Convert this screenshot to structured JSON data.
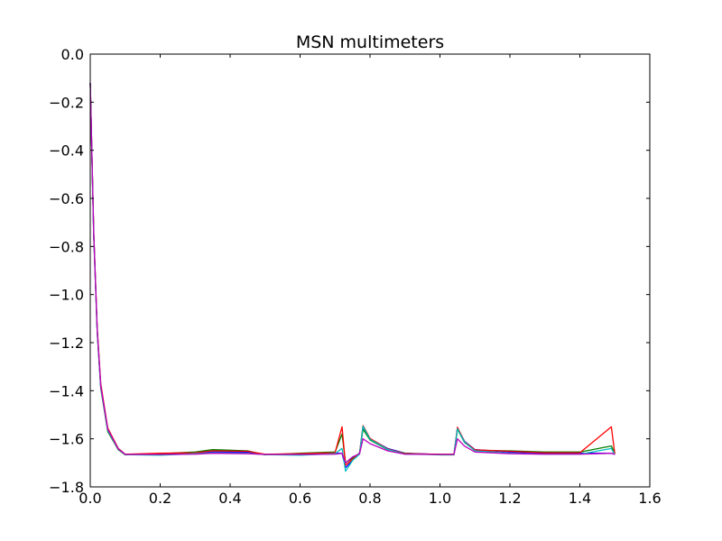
{
  "chart_data": {
    "type": "line",
    "title": "MSN multimeters",
    "xlabel": "",
    "ylabel": "",
    "xlim": [
      0.0,
      1.6
    ],
    "ylim": [
      -1.8,
      0.0
    ],
    "xticks": [
      0.0,
      0.2,
      0.4,
      0.6,
      0.8,
      1.0,
      1.2,
      1.4,
      1.6
    ],
    "xtick_labels": [
      "0.0",
      "0.2",
      "0.4",
      "0.6",
      "0.8",
      "1.0",
      "1.2",
      "1.4",
      "1.6"
    ],
    "yticks": [
      0.0,
      -0.2,
      -0.4,
      -0.6,
      -0.8,
      -1.0,
      -1.2,
      -1.4,
      -1.6,
      -1.8
    ],
    "ytick_labels": [
      "0.0",
      "−0.2",
      "−0.4",
      "−0.6",
      "−0.8",
      "−1.0",
      "−1.2",
      "−1.4",
      "−1.6",
      "−1.8"
    ],
    "grid": false,
    "legend": "none",
    "series": [
      {
        "color": "#0000ff",
        "x": [
          0.0,
          0.01,
          0.02,
          0.03,
          0.05,
          0.08,
          0.1,
          0.2,
          0.3,
          0.35,
          0.45,
          0.5,
          0.6,
          0.7,
          0.72,
          0.73,
          0.75,
          0.77,
          0.78,
          0.8,
          0.85,
          0.9,
          1.0,
          1.04,
          1.05,
          1.07,
          1.1,
          1.2,
          1.3,
          1.4,
          1.49,
          1.5
        ],
        "y": [
          -0.12,
          -0.75,
          -1.15,
          -1.38,
          -1.56,
          -1.64,
          -1.665,
          -1.665,
          -1.66,
          -1.655,
          -1.655,
          -1.665,
          -1.665,
          -1.66,
          -1.66,
          -1.72,
          -1.69,
          -1.66,
          -1.55,
          -1.6,
          -1.64,
          -1.66,
          -1.665,
          -1.665,
          -1.555,
          -1.61,
          -1.645,
          -1.655,
          -1.66,
          -1.66,
          -1.66,
          -1.665
        ]
      },
      {
        "color": "#008000",
        "x": [
          0.0,
          0.01,
          0.02,
          0.03,
          0.05,
          0.08,
          0.1,
          0.2,
          0.3,
          0.35,
          0.45,
          0.5,
          0.6,
          0.7,
          0.72,
          0.73,
          0.75,
          0.77,
          0.78,
          0.8,
          0.85,
          0.9,
          1.0,
          1.04,
          1.05,
          1.07,
          1.1,
          1.2,
          1.3,
          1.4,
          1.49,
          1.5
        ],
        "y": [
          -0.12,
          -0.76,
          -1.16,
          -1.39,
          -1.57,
          -1.645,
          -1.667,
          -1.662,
          -1.655,
          -1.645,
          -1.65,
          -1.667,
          -1.66,
          -1.655,
          -1.58,
          -1.7,
          -1.68,
          -1.66,
          -1.56,
          -1.605,
          -1.645,
          -1.66,
          -1.667,
          -1.667,
          -1.56,
          -1.615,
          -1.648,
          -1.65,
          -1.655,
          -1.655,
          -1.63,
          -1.66
        ]
      },
      {
        "color": "#ff0000",
        "x": [
          0.0,
          0.01,
          0.02,
          0.03,
          0.05,
          0.08,
          0.1,
          0.2,
          0.3,
          0.35,
          0.45,
          0.5,
          0.6,
          0.7,
          0.72,
          0.73,
          0.75,
          0.77,
          0.78,
          0.8,
          0.85,
          0.9,
          1.0,
          1.04,
          1.05,
          1.07,
          1.1,
          1.2,
          1.3,
          1.4,
          1.49,
          1.5
        ],
        "y": [
          -0.12,
          -0.74,
          -1.14,
          -1.37,
          -1.555,
          -1.64,
          -1.664,
          -1.66,
          -1.658,
          -1.65,
          -1.652,
          -1.664,
          -1.662,
          -1.658,
          -1.55,
          -1.71,
          -1.685,
          -1.662,
          -1.545,
          -1.598,
          -1.642,
          -1.662,
          -1.664,
          -1.664,
          -1.552,
          -1.612,
          -1.646,
          -1.652,
          -1.658,
          -1.658,
          -1.55,
          -1.664
        ]
      },
      {
        "color": "#00bfbf",
        "x": [
          0.0,
          0.01,
          0.02,
          0.03,
          0.05,
          0.08,
          0.1,
          0.2,
          0.3,
          0.35,
          0.45,
          0.5,
          0.6,
          0.7,
          0.72,
          0.73,
          0.75,
          0.77,
          0.78,
          0.8,
          0.85,
          0.9,
          1.0,
          1.04,
          1.05,
          1.07,
          1.1,
          1.2,
          1.3,
          1.4,
          1.49,
          1.5
        ],
        "y": [
          -0.12,
          -0.755,
          -1.155,
          -1.385,
          -1.565,
          -1.643,
          -1.666,
          -1.668,
          -1.662,
          -1.658,
          -1.66,
          -1.666,
          -1.668,
          -1.662,
          -1.64,
          -1.735,
          -1.69,
          -1.664,
          -1.548,
          -1.602,
          -1.644,
          -1.664,
          -1.666,
          -1.666,
          -1.558,
          -1.614,
          -1.65,
          -1.66,
          -1.664,
          -1.664,
          -1.64,
          -1.666
        ]
      },
      {
        "color": "#bf00bf",
        "x": [
          0.0,
          0.01,
          0.02,
          0.03,
          0.05,
          0.08,
          0.1,
          0.2,
          0.3,
          0.35,
          0.45,
          0.5,
          0.6,
          0.7,
          0.72,
          0.73,
          0.75,
          0.77,
          0.78,
          0.8,
          0.85,
          0.9,
          1.0,
          1.04,
          1.05,
          1.07,
          1.1,
          1.2,
          1.3,
          1.4,
          1.49,
          1.5
        ],
        "y": [
          -0.12,
          -0.75,
          -1.15,
          -1.38,
          -1.56,
          -1.642,
          -1.665,
          -1.665,
          -1.664,
          -1.66,
          -1.662,
          -1.665,
          -1.665,
          -1.664,
          -1.66,
          -1.7,
          -1.675,
          -1.662,
          -1.6,
          -1.62,
          -1.65,
          -1.664,
          -1.665,
          -1.665,
          -1.6,
          -1.63,
          -1.655,
          -1.662,
          -1.664,
          -1.664,
          -1.66,
          -1.665
        ]
      }
    ]
  }
}
